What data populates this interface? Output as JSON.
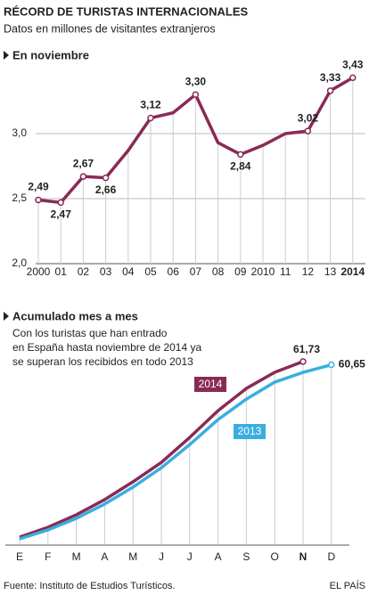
{
  "header": {
    "title": "RÉCORD DE TURISTAS INTERNACIONALES",
    "subtitle": "Datos en millones de visitantes extranjeros"
  },
  "chart_data": [
    {
      "type": "line",
      "title": "En noviembre",
      "categories": [
        "2000",
        "01",
        "02",
        "03",
        "04",
        "05",
        "06",
        "07",
        "08",
        "09",
        "2010",
        "11",
        "12",
        "13",
        "2014"
      ],
      "series": [
        {
          "name": null,
          "color": "#8a2a56",
          "values": [
            2.49,
            2.47,
            2.67,
            2.66,
            2.87,
            3.12,
            3.16,
            3.3,
            2.93,
            2.84,
            2.91,
            3.0,
            3.02,
            3.33,
            3.43
          ],
          "value_labels": [
            "2,49",
            "2,47",
            "2,67",
            "2,66",
            null,
            "3,12",
            null,
            "3,30",
            null,
            "2,84",
            null,
            null,
            "3,02",
            "3,33",
            "3,43"
          ]
        }
      ],
      "ylim": [
        2.0,
        3.45
      ],
      "yticks": [
        {
          "value": 2.0,
          "label": "2,0"
        },
        {
          "value": 2.5,
          "label": "2,5"
        },
        {
          "value": 3.0,
          "label": "3,0"
        }
      ],
      "grid": true
    },
    {
      "type": "line",
      "title": "Acumulado mes a mes",
      "annotation": [
        "Con los turistas que han entrado",
        "en España hasta noviembre de 2014 ya",
        "se superan los recibidos en todo 2013"
      ],
      "categories": [
        "E",
        "F",
        "M",
        "A",
        "M",
        "J",
        "J",
        "A",
        "S",
        "O",
        "N",
        "D"
      ],
      "series": [
        {
          "name": "2014",
          "color": "#8a2a56",
          "values": [
            2.7,
            6.0,
            10.2,
            15.3,
            21.3,
            27.8,
            36.2,
            45.2,
            52.7,
            58.1,
            61.73,
            null
          ],
          "value_labels": [
            null,
            null,
            null,
            null,
            null,
            null,
            null,
            null,
            null,
            null,
            "61,73",
            null
          ]
        },
        {
          "name": "2013",
          "color": "#3aaee0",
          "values": [
            2.1,
            5.1,
            9.0,
            13.8,
            19.5,
            26.0,
            33.8,
            42.2,
            49.1,
            54.8,
            58.1,
            60.65
          ],
          "value_labels": [
            null,
            null,
            null,
            null,
            null,
            null,
            null,
            null,
            null,
            null,
            null,
            "60,65"
          ]
        }
      ],
      "ylim": [
        0,
        65
      ]
    }
  ],
  "footer": {
    "source": "Fuente: Instituto de Estudios Turísticos.",
    "brand": "EL PAÍS"
  }
}
